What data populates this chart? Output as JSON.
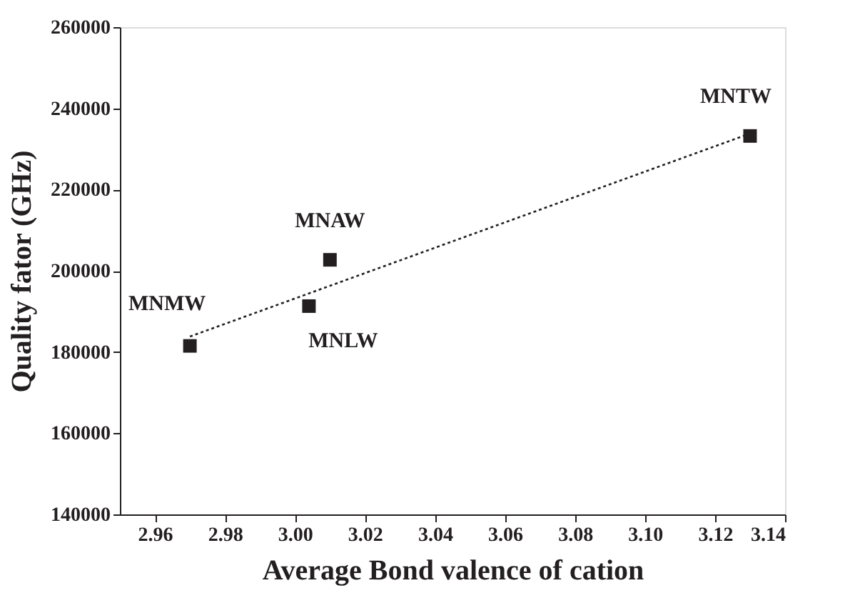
{
  "chart_data": {
    "type": "scatter",
    "xlabel": "Average Bond valence of cation",
    "ylabel": "Quality fator (GHz)",
    "xlim": [
      2.95,
      3.14
    ],
    "ylim": [
      140000,
      260000
    ],
    "xticks": [
      {
        "value": 2.96,
        "label": "2.96"
      },
      {
        "value": 2.98,
        "label": "2.98"
      },
      {
        "value": 3.0,
        "label": "3.00"
      },
      {
        "value": 3.02,
        "label": "3.02"
      },
      {
        "value": 3.04,
        "label": "3.04"
      },
      {
        "value": 3.06,
        "label": "3.06"
      },
      {
        "value": 3.08,
        "label": "3.08"
      },
      {
        "value": 3.1,
        "label": "3.10"
      },
      {
        "value": 3.12,
        "label": "3.12"
      },
      {
        "value": 3.14,
        "label": "3.14"
      }
    ],
    "yticks": [
      140000,
      160000,
      180000,
      200000,
      220000,
      240000,
      260000
    ],
    "grid": false,
    "series": [
      {
        "color": "#231f20",
        "marker": "square",
        "x": [
          2.97,
          3.004,
          3.01,
          3.13
        ],
        "values": [
          181500,
          191300,
          202700,
          233200
        ]
      },
      {
        "type": "line",
        "color": "#231f20",
        "line_style": "dotted",
        "x": [
          2.97,
          3.13
        ],
        "values": [
          183800,
          233800
        ]
      }
    ],
    "annotations": [
      {
        "text": "MNMW",
        "x": 2.97,
        "y": 181500
      },
      {
        "text": "MNLW",
        "x": 3.004,
        "y": 191300
      },
      {
        "text": "MNAW",
        "x": 3.01,
        "y": 202700
      },
      {
        "text": "MNTW",
        "x": 3.13,
        "y": 233200
      }
    ]
  }
}
